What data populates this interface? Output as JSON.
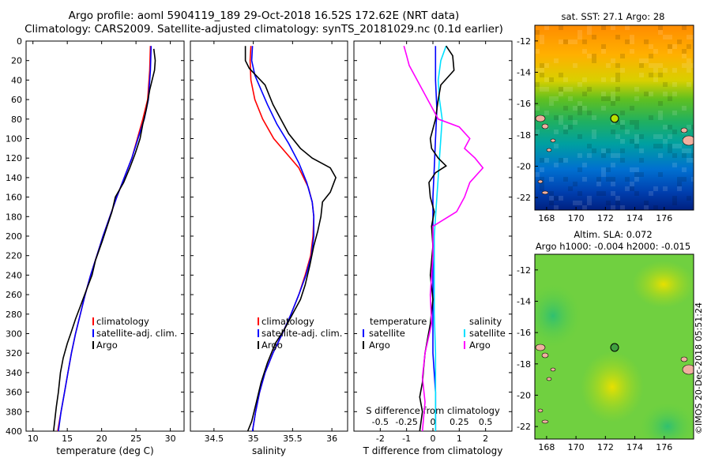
{
  "titles": {
    "line1": "Argo profile: aoml 5904119_189 29-Oct-2018 16.52S 172.62E (NRT data)",
    "line2": "Climatology: CARS2009. Satellite-adjusted climatology: synTS_20181029.nc (0.1d earlier)"
  },
  "credit": "©IMOS 20-Dec-2018 05:51:24",
  "map_top": {
    "title": "sat. SST: 27.1 Argo: 28",
    "x_ticks": [
      "168",
      "170",
      "172",
      "174",
      "176"
    ],
    "y_ticks": [
      "-12",
      "-14",
      "-16",
      "-18",
      "-20",
      "-22"
    ]
  },
  "map_bottom": {
    "title_line1": "Altim. SLA: 0.072",
    "title_line2": "Argo h1000: -0.004 h2000: -0.015",
    "x_ticks": [
      "168",
      "170",
      "172",
      "174",
      "176"
    ],
    "y_ticks": [
      "-12",
      "-14",
      "-16",
      "-18",
      "-20",
      "-22"
    ]
  },
  "colors": {
    "climatology": "#ff0000",
    "satellite": "#0000ff",
    "argo": "#000000",
    "satellite_s": "#00e0ff",
    "argo_s": "#ff00ff"
  },
  "chart_data": [
    {
      "type": "line",
      "xlabel": "temperature (deg C)",
      "ylabel": "depth",
      "xlim": [
        9,
        32
      ],
      "ylim": [
        400,
        0
      ],
      "x_ticks": [
        "10",
        "15",
        "20",
        "25",
        "30"
      ],
      "y_ticks": [
        "0",
        "20",
        "40",
        "60",
        "80",
        "100",
        "120",
        "140",
        "160",
        "180",
        "200",
        "220",
        "240",
        "260",
        "280",
        "300",
        "320",
        "340",
        "360",
        "380",
        "400"
      ],
      "legend": [
        "climatology",
        "satellite-adj. clim.",
        "Argo"
      ],
      "series": [
        {
          "name": "climatology",
          "color": "#ff0000",
          "points": [
            [
              27.1,
              5
            ],
            [
              27.0,
              30
            ],
            [
              26.7,
              60
            ],
            [
              26.0,
              80
            ],
            [
              25.2,
              100
            ],
            [
              24.4,
              120
            ],
            [
              23.3,
              140
            ],
            [
              22.2,
              160
            ],
            [
              21.2,
              180
            ],
            [
              20.2,
              200
            ],
            [
              19.3,
              220
            ],
            [
              18.4,
              240
            ],
            [
              17.6,
              260
            ],
            [
              16.9,
              280
            ],
            [
              16.2,
              300
            ],
            [
              15.6,
              320
            ],
            [
              15.1,
              340
            ],
            [
              14.6,
              360
            ],
            [
              14.1,
              380
            ],
            [
              13.6,
              400
            ]
          ]
        },
        {
          "name": "satellite-adj. clim.",
          "color": "#0000ff",
          "points": [
            [
              27.2,
              5
            ],
            [
              27.1,
              30
            ],
            [
              26.8,
              60
            ],
            [
              26.2,
              80
            ],
            [
              25.3,
              100
            ],
            [
              24.4,
              120
            ],
            [
              23.3,
              140
            ],
            [
              22.2,
              160
            ],
            [
              21.2,
              180
            ],
            [
              20.2,
              200
            ],
            [
              19.3,
              220
            ],
            [
              18.4,
              240
            ],
            [
              17.6,
              260
            ],
            [
              16.9,
              280
            ],
            [
              16.2,
              300
            ],
            [
              15.6,
              320
            ],
            [
              15.1,
              340
            ],
            [
              14.6,
              360
            ],
            [
              14.1,
              380
            ],
            [
              13.7,
              400
            ]
          ]
        },
        {
          "name": "Argo",
          "color": "#000000",
          "points": [
            [
              27.6,
              8
            ],
            [
              27.8,
              20
            ],
            [
              27.7,
              30
            ],
            [
              27.0,
              50
            ],
            [
              26.5,
              70
            ],
            [
              26.0,
              85
            ],
            [
              25.6,
              100
            ],
            [
              24.9,
              115
            ],
            [
              24.1,
              130
            ],
            [
              23.2,
              145
            ],
            [
              22.0,
              160
            ],
            [
              21.5,
              175
            ],
            [
              20.8,
              190
            ],
            [
              20.1,
              205
            ],
            [
              19.1,
              225
            ],
            [
              18.6,
              240
            ],
            [
              17.8,
              255
            ],
            [
              17.0,
              270
            ],
            [
              16.2,
              285
            ],
            [
              15.5,
              300
            ],
            [
              15.0,
              310
            ],
            [
              14.4,
              325
            ],
            [
              14.0,
              340
            ],
            [
              13.7,
              360
            ],
            [
              13.4,
              375
            ],
            [
              13.0,
              400
            ]
          ]
        }
      ]
    },
    {
      "type": "line",
      "xlabel": "salinity",
      "ylabel": "depth",
      "xlim": [
        34.2,
        36.2
      ],
      "ylim": [
        400,
        0
      ],
      "x_ticks": [
        "34.5",
        "35",
        "35.5",
        "36"
      ],
      "legend": [
        "climatology",
        "satellite-adj. clim.",
        "Argo"
      ],
      "series": [
        {
          "name": "climatology",
          "color": "#ff0000",
          "points": [
            [
              34.97,
              5
            ],
            [
              34.96,
              20
            ],
            [
              34.97,
              40
            ],
            [
              35.02,
              60
            ],
            [
              35.12,
              80
            ],
            [
              35.26,
              100
            ],
            [
              35.42,
              115
            ],
            [
              35.58,
              130
            ],
            [
              35.7,
              150
            ],
            [
              35.75,
              165
            ],
            [
              35.77,
              180
            ],
            [
              35.76,
              200
            ],
            [
              35.73,
              220
            ],
            [
              35.66,
              240
            ],
            [
              35.58,
              260
            ],
            [
              35.48,
              280
            ],
            [
              35.37,
              300
            ],
            [
              35.25,
              320
            ],
            [
              35.15,
              340
            ],
            [
              35.08,
              360
            ],
            [
              35.03,
              380
            ],
            [
              34.99,
              400
            ]
          ]
        },
        {
          "name": "satellite-adj. clim.",
          "color": "#0000ff",
          "points": [
            [
              34.99,
              5
            ],
            [
              34.98,
              20
            ],
            [
              35.02,
              35
            ],
            [
              35.1,
              50
            ],
            [
              35.18,
              65
            ],
            [
              35.3,
              85
            ],
            [
              35.45,
              105
            ],
            [
              35.58,
              125
            ],
            [
              35.68,
              145
            ],
            [
              35.75,
              165
            ],
            [
              35.77,
              180
            ],
            [
              35.77,
              200
            ],
            [
              35.74,
              220
            ],
            [
              35.67,
              240
            ],
            [
              35.58,
              260
            ],
            [
              35.48,
              280
            ],
            [
              35.37,
              300
            ],
            [
              35.25,
              320
            ],
            [
              35.15,
              340
            ],
            [
              35.08,
              360
            ],
            [
              35.03,
              380
            ],
            [
              34.99,
              400
            ]
          ]
        },
        {
          "name": "Argo",
          "color": "#000000",
          "points": [
            [
              34.9,
              5
            ],
            [
              34.9,
              20
            ],
            [
              34.95,
              28
            ],
            [
              35.15,
              45
            ],
            [
              35.25,
              65
            ],
            [
              35.35,
              80
            ],
            [
              35.45,
              95
            ],
            [
              35.6,
              110
            ],
            [
              35.75,
              120
            ],
            [
              35.98,
              130
            ],
            [
              36.05,
              140
            ],
            [
              35.98,
              155
            ],
            [
              35.88,
              165
            ],
            [
              35.86,
              180
            ],
            [
              35.82,
              195
            ],
            [
              35.77,
              210
            ],
            [
              35.72,
              230
            ],
            [
              35.66,
              250
            ],
            [
              35.6,
              265
            ],
            [
              35.5,
              280
            ],
            [
              35.4,
              295
            ],
            [
              35.28,
              310
            ],
            [
              35.18,
              330
            ],
            [
              35.1,
              350
            ],
            [
              35.04,
              370
            ],
            [
              34.98,
              390
            ],
            [
              34.93,
              400
            ]
          ]
        }
      ]
    },
    {
      "type": "line",
      "xlabel": "T difference from climatology",
      "x2label": "S difference from climatology",
      "ylabel": "depth",
      "xlim": [
        -3,
        3
      ],
      "ylim": [
        400,
        0
      ],
      "x_ticks": [
        "-2",
        "-1",
        "0",
        "1",
        "2"
      ],
      "x2_ticks": [
        "-0.5",
        "-0.25",
        "0",
        "0.25",
        "0.5"
      ],
      "legend_left_title": "temperature",
      "legend_right_title": "salinity",
      "legend_left": [
        "satellite",
        "Argo"
      ],
      "legend_right": [
        "satellite",
        "Argo"
      ],
      "series": [
        {
          "name": "T satellite",
          "color": "#0000ff",
          "points": [
            [
              0.1,
              5
            ],
            [
              0.1,
              40
            ],
            [
              0.15,
              70
            ],
            [
              0.1,
              100
            ],
            [
              0.05,
              130
            ],
            [
              0.0,
              160
            ],
            [
              0.0,
              200
            ],
            [
              0.0,
              240
            ],
            [
              0.0,
              280
            ],
            [
              0.0,
              320
            ],
            [
              0.1,
              360
            ],
            [
              0.1,
              400
            ]
          ]
        },
        {
          "name": "S satellite",
          "color": "#00e0ff",
          "points": [
            [
              0.5,
              5
            ],
            [
              0.3,
              20
            ],
            [
              0.2,
              40
            ],
            [
              0.25,
              60
            ],
            [
              0.35,
              80
            ],
            [
              0.3,
              100
            ],
            [
              0.25,
              120
            ],
            [
              0.2,
              140
            ],
            [
              0.15,
              160
            ],
            [
              0.1,
              180
            ],
            [
              0.05,
              200
            ],
            [
              0.05,
              240
            ],
            [
              0.05,
              280
            ],
            [
              0.1,
              320
            ],
            [
              0.1,
              360
            ],
            [
              0.1,
              400
            ]
          ]
        },
        {
          "name": "T Argo",
          "color": "#000000",
          "points": [
            [
              0.5,
              5
            ],
            [
              0.75,
              15
            ],
            [
              0.8,
              30
            ],
            [
              0.3,
              45
            ],
            [
              0.2,
              60
            ],
            [
              0.1,
              80
            ],
            [
              0.0,
              90
            ],
            [
              -0.1,
              100
            ],
            [
              -0.05,
              110
            ],
            [
              0.2,
              120
            ],
            [
              0.5,
              128
            ],
            [
              0.1,
              135
            ],
            [
              -0.15,
              145
            ],
            [
              -0.1,
              160
            ],
            [
              0.05,
              175
            ],
            [
              -0.05,
              190
            ],
            [
              0.0,
              210
            ],
            [
              -0.1,
              240
            ],
            [
              0.0,
              265
            ],
            [
              -0.1,
              290
            ],
            [
              -0.2,
              305
            ],
            [
              -0.3,
              320
            ],
            [
              -0.35,
              335
            ],
            [
              -0.4,
              350
            ],
            [
              -0.5,
              365
            ],
            [
              -0.4,
              380
            ],
            [
              -0.5,
              400
            ]
          ]
        },
        {
          "name": "S Argo",
          "color": "#ff00ff",
          "points": [
            [
              -1.1,
              5
            ],
            [
              -1.0,
              15
            ],
            [
              -0.9,
              25
            ],
            [
              -0.6,
              40
            ],
            [
              -0.3,
              55
            ],
            [
              -0.1,
              65
            ],
            [
              0.2,
              80
            ],
            [
              1.0,
              88
            ],
            [
              1.4,
              100
            ],
            [
              1.2,
              110
            ],
            [
              1.6,
              120
            ],
            [
              1.9,
              130
            ],
            [
              1.4,
              145
            ],
            [
              1.2,
              160
            ],
            [
              0.9,
              175
            ],
            [
              0.0,
              190
            ],
            [
              0.0,
              220
            ],
            [
              -0.1,
              260
            ],
            [
              -0.05,
              290
            ],
            [
              -0.3,
              320
            ],
            [
              -0.4,
              345
            ],
            [
              -0.3,
              370
            ],
            [
              -0.4,
              400
            ]
          ]
        }
      ]
    }
  ]
}
